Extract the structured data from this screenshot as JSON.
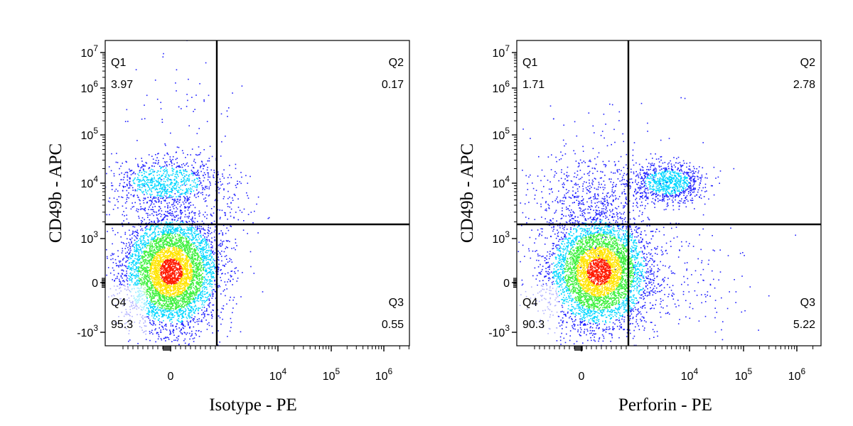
{
  "chart_data": [
    {
      "type": "scatter",
      "subtype": "flow-cytometry-density-dot-plot",
      "xlabel": "Isotype - PE",
      "ylabel": "CD49b - APC",
      "x_ticks": [
        "0",
        "10^4",
        "10^5",
        "10^6"
      ],
      "y_ticks": [
        "-10^3",
        "0",
        "10^3",
        "10^4",
        "10^5",
        "10^6",
        "10^7"
      ],
      "quadrants": [
        {
          "name": "Q1",
          "value": "3.97"
        },
        {
          "name": "Q2",
          "value": "0.17"
        },
        {
          "name": "Q3",
          "value": "0.55"
        },
        {
          "name": "Q4",
          "value": "95.3"
        }
      ]
    },
    {
      "type": "scatter",
      "subtype": "flow-cytometry-density-dot-plot",
      "xlabel": "Perforin - PE",
      "ylabel": "CD49b - APC",
      "x_ticks": [
        "0",
        "10^4",
        "10^5",
        "10^6"
      ],
      "y_ticks": [
        "-10^3",
        "0",
        "10^3",
        "10^4",
        "10^5",
        "10^6",
        "10^7"
      ],
      "quadrants": [
        {
          "name": "Q1",
          "value": "1.71"
        },
        {
          "name": "Q2",
          "value": "2.78"
        },
        {
          "name": "Q3",
          "value": "5.22"
        },
        {
          "name": "Q4",
          "value": "90.3"
        }
      ]
    }
  ],
  "colors": {
    "density_low": "#1f1fff",
    "density_mid": "#00d7ff",
    "density_green": "#3cf03c",
    "density_yellow": "#ffe400",
    "density_high": "#ff1a00",
    "gate_line": "#000000"
  }
}
